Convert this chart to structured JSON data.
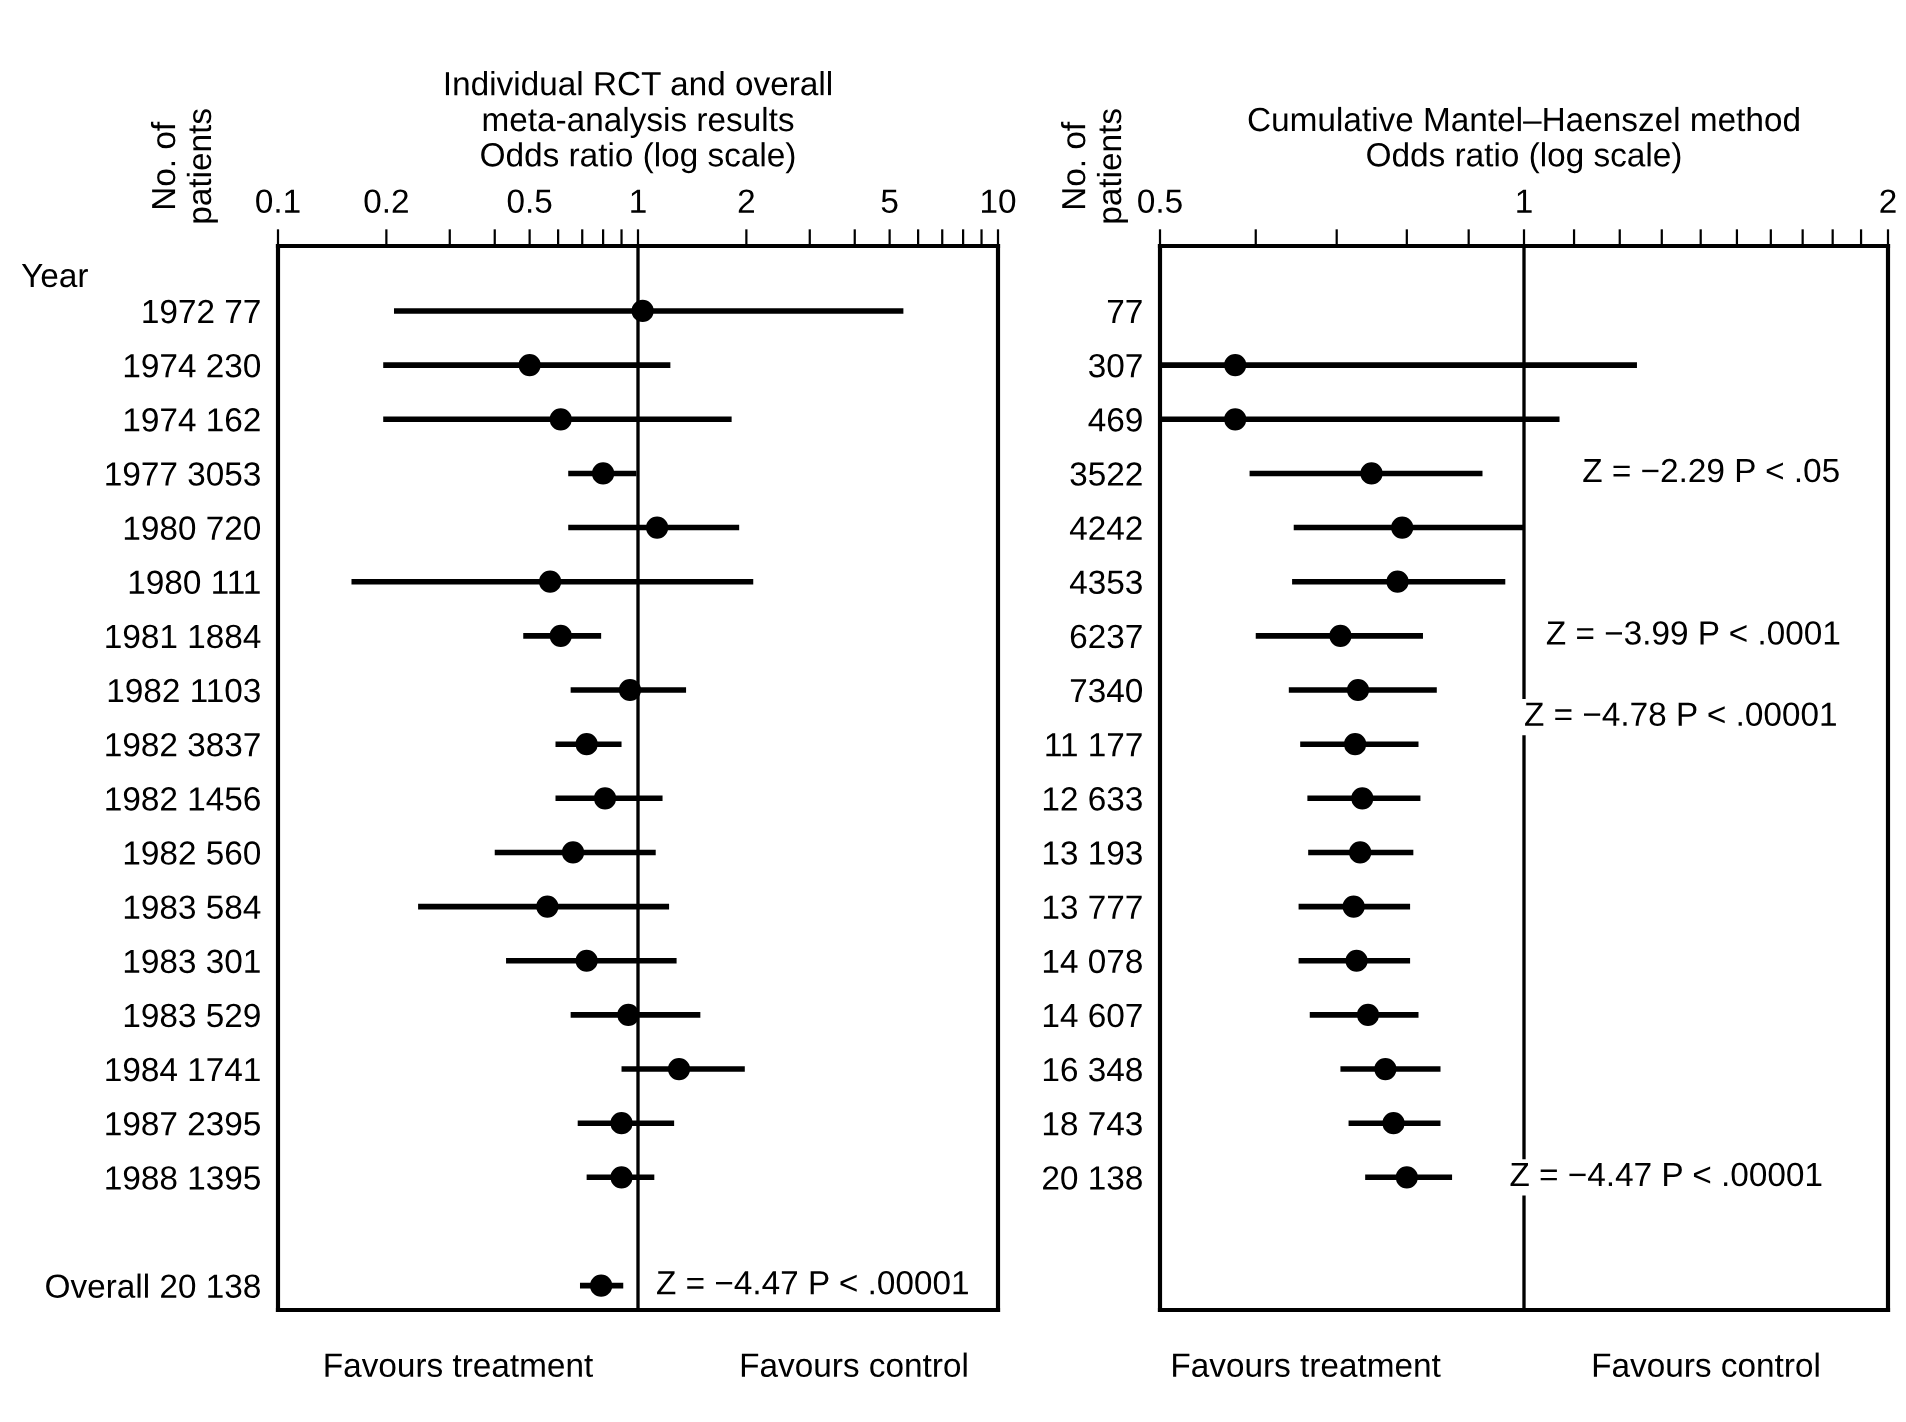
{
  "chart_data": [
    {
      "type": "scatter",
      "orientation": "horizontal",
      "title": "Individual RCT and overall\nmeta-analysis results",
      "xlabel": "Odds ratio (log scale)",
      "categories": [
        "1972 77",
        "1974 230",
        "1974 162",
        "1977 3053",
        "1980 720",
        "1980 111",
        "1981 1884",
        "1982 1103",
        "1982 3837",
        "1982 1456",
        "1982 560",
        "1983 584",
        "1983 301",
        "1983 529",
        "1984 1741",
        "1987 2395",
        "1988 1395",
        null,
        "Overall 20 138"
      ],
      "series": [
        {
          "color": "#000000",
          "values": [
            1.03,
            0.5,
            0.61,
            0.8,
            1.13,
            0.57,
            0.61,
            0.95,
            0.72,
            0.81,
            0.66,
            0.56,
            0.72,
            0.94,
            1.3,
            0.9,
            0.9,
            null,
            0.79
          ],
          "errors": [
            [
              0.21,
              5.46
            ],
            [
              0.196,
              1.23
            ],
            [
              0.196,
              1.82
            ],
            [
              0.64,
              0.99
            ],
            [
              0.64,
              1.91
            ],
            [
              0.16,
              2.09
            ],
            [
              0.48,
              0.79
            ],
            [
              0.65,
              1.36
            ],
            [
              0.59,
              0.9
            ],
            [
              0.59,
              1.17
            ],
            [
              0.4,
              1.12
            ],
            [
              0.245,
              1.22
            ],
            [
              0.43,
              1.28
            ],
            [
              0.65,
              1.49
            ],
            [
              0.9,
              1.98
            ],
            [
              0.68,
              1.26
            ],
            [
              0.72,
              1.11
            ],
            null,
            [
              0.69,
              0.91
            ]
          ]
        }
      ],
      "log": "x",
      "xlim": [
        0.1,
        10
      ],
      "xticks": [
        0.1,
        0.2,
        {
          "value": 0.3,
          "label": null
        },
        {
          "value": 0.4,
          "label": null
        },
        0.5,
        {
          "value": 0.6,
          "label": null
        },
        {
          "value": 0.7,
          "label": null
        },
        {
          "value": 0.8,
          "label": null
        },
        {
          "value": 0.9,
          "label": null
        },
        1,
        2,
        {
          "value": 3,
          "label": null
        },
        {
          "value": 4,
          "label": null
        },
        5,
        {
          "value": 6,
          "label": null
        },
        {
          "value": 7,
          "label": null
        },
        {
          "value": 8,
          "label": null
        },
        {
          "value": 9,
          "label": null
        },
        10
      ],
      "ref_lines": [
        {
          "axis": "x",
          "value": 1,
          "color": "#000000"
        }
      ],
      "marker": "circle",
      "line_style": "solid",
      "grid": false,
      "annotations": [
        "Year",
        "No. of\npatients",
        "Favours treatment",
        "Favours control",
        "Z = −4.47 P < .00001"
      ]
    },
    {
      "type": "scatter",
      "orientation": "horizontal",
      "title": "Cumulative Mantel–Haenszel method",
      "xlabel": "Odds ratio (log scale)",
      "categories": [
        "77",
        "307",
        "469",
        "3522",
        "4242",
        "4353",
        "6237",
        "7340",
        "11 177",
        "12 633",
        "13 193",
        "13 777",
        "14 078",
        "14 607",
        "16 348",
        "18 743",
        "20 138",
        null,
        null
      ],
      "series": [
        {
          "color": "#000000",
          "values": [
            null,
            0.577,
            0.577,
            0.748,
            0.793,
            0.786,
            0.705,
            0.729,
            0.725,
            0.735,
            0.732,
            0.723,
            0.727,
            0.743,
            0.768,
            0.78,
            0.8,
            null,
            null
          ],
          "errors": [
            null,
            [
              0.5,
              1.24
            ],
            [
              0.5,
              1.07
            ],
            [
              0.593,
              0.924
            ],
            [
              0.645,
              1.0
            ],
            [
              0.643,
              0.965
            ],
            [
              0.6,
              0.825
            ],
            [
              0.639,
              0.847
            ],
            [
              0.653,
              0.818
            ],
            [
              0.662,
              0.821
            ],
            [
              0.663,
              0.81
            ],
            [
              0.651,
              0.805
            ],
            [
              0.651,
              0.805
            ],
            [
              0.665,
              0.818
            ],
            [
              0.705,
              0.853
            ],
            [
              0.716,
              0.853
            ],
            [
              0.739,
              0.872
            ],
            null,
            null
          ]
        }
      ],
      "log": "x",
      "xlim": [
        0.5,
        2
      ],
      "xticks": [
        0.5,
        {
          "value": 0.6,
          "label": null
        },
        {
          "value": 0.7,
          "label": null
        },
        {
          "value": 0.8,
          "label": null
        },
        {
          "value": 0.9,
          "label": null
        },
        1,
        {
          "value": 1.1,
          "label": null
        },
        {
          "value": 1.2,
          "label": null
        },
        {
          "value": 1.3,
          "label": null
        },
        {
          "value": 1.4,
          "label": null
        },
        {
          "value": 1.5,
          "label": null
        },
        {
          "value": 1.6,
          "label": null
        },
        {
          "value": 1.7,
          "label": null
        },
        {
          "value": 1.8,
          "label": null
        },
        {
          "value": 1.9,
          "label": null
        },
        2
      ],
      "ref_lines": [
        {
          "axis": "x",
          "value": 1,
          "color": "#000000"
        }
      ],
      "marker": "circle",
      "line_style": "solid",
      "grid": false,
      "annotations": [
        "No. of\npatients",
        "Favours treatment",
        "Favours control",
        "Z = −2.29 P < .05",
        "Z = −3.99 P < .0001",
        "Z = −4.78 P < .00001",
        "Z = −4.47 P < .00001"
      ]
    }
  ]
}
